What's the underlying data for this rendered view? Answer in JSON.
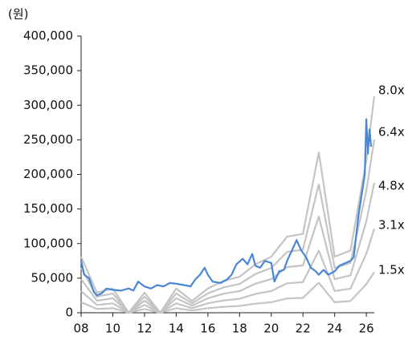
{
  "chart_data": {
    "type": "line",
    "y_label": "(원)",
    "xlim": [
      2008,
      2026.5
    ],
    "ylim": [
      0,
      400000
    ],
    "xticks": [
      {
        "value": 2008,
        "label": "08"
      },
      {
        "value": 2010,
        "label": "10"
      },
      {
        "value": 2012,
        "label": "12"
      },
      {
        "value": 2014,
        "label": "14"
      },
      {
        "value": 2016,
        "label": "16"
      },
      {
        "value": 2018,
        "label": "18"
      },
      {
        "value": 2020,
        "label": "20"
      },
      {
        "value": 2022,
        "label": "22"
      },
      {
        "value": 2024,
        "label": "24"
      },
      {
        "value": 2026,
        "label": "26"
      }
    ],
    "yticks": [
      0,
      {
        "value": 50000,
        "label": "50,000"
      },
      {
        "value": 100000,
        "label": "100,000"
      },
      {
        "value": 150000,
        "label": "150,000"
      },
      {
        "value": 200000,
        "label": "200,000"
      },
      {
        "value": 250000,
        "label": "250,000"
      },
      {
        "value": 300000,
        "label": "300,000"
      },
      {
        "value": 350000,
        "label": "350,000"
      },
      {
        "value": 400000,
        "label": "400,000"
      }
    ],
    "x": [
      2008,
      2009,
      2010,
      2011,
      2012,
      2013,
      2014,
      2015,
      2016,
      2017,
      2018,
      2019,
      2020,
      2021,
      2022,
      2023,
      2024,
      2025,
      2026,
      2026.5
    ],
    "series": [
      {
        "name": "8.0x",
        "color": "#c4c4c4",
        "values": [
          81000,
          29000,
          35000,
          0,
          29000,
          0,
          35000,
          17000,
          35000,
          46000,
          52000,
          70000,
          81000,
          110000,
          114000,
          232000,
          81000,
          90000,
          220000,
          313000
        ]
      },
      {
        "name": "6.4x",
        "color": "#c4c4c4",
        "values": [
          64800,
          23200,
          28000,
          0,
          23200,
          0,
          28000,
          13600,
          28000,
          36800,
          41600,
          56000,
          64800,
          88000,
          91200,
          185600,
          64800,
          72000,
          176000,
          250400
        ]
      },
      {
        "name": "4.8x",
        "color": "#c4c4c4",
        "values": [
          48600,
          17400,
          21000,
          0,
          17400,
          0,
          21000,
          10200,
          21000,
          27600,
          31200,
          42000,
          48600,
          66000,
          68400,
          139200,
          48600,
          54000,
          132000,
          187800
        ]
      },
      {
        "name": "3.1x",
        "color": "#c4c4c4",
        "values": [
          31400,
          11200,
          13600,
          0,
          11200,
          0,
          13600,
          6600,
          13600,
          17800,
          20200,
          27100,
          31400,
          42600,
          44200,
          89900,
          31400,
          34900,
          85300,
          121300
        ]
      },
      {
        "name": "1.5x",
        "color": "#c4c4c4",
        "values": [
          15200,
          5400,
          6600,
          0,
          5400,
          0,
          6600,
          3200,
          6600,
          8600,
          9800,
          13100,
          15200,
          20600,
          21400,
          43500,
          15200,
          16900,
          41300,
          58700
        ]
      }
    ],
    "price": {
      "color": "#4a86d6",
      "x": [
        2008.0,
        2008.2,
        2008.5,
        2008.8,
        2009.0,
        2009.3,
        2009.6,
        2010.0,
        2010.5,
        2011.0,
        2011.3,
        2011.6,
        2012.0,
        2012.4,
        2012.8,
        2013.2,
        2013.6,
        2014.0,
        2014.5,
        2014.9,
        2015.2,
        2015.5,
        2015.8,
        2016.0,
        2016.3,
        2016.8,
        2017.2,
        2017.5,
        2017.8,
        2018.2,
        2018.5,
        2018.8,
        2019.0,
        2019.3,
        2019.6,
        2020.0,
        2020.2,
        2020.5,
        2020.8,
        2021.0,
        2021.3,
        2021.6,
        2021.9,
        2022.2,
        2022.5,
        2022.8,
        2023.0,
        2023.3,
        2023.6,
        2024.0,
        2024.3,
        2024.7,
        2025.0,
        2025.2,
        2025.5,
        2025.7,
        2025.9,
        2026.0,
        2026.1,
        2026.2,
        2026.3
      ],
      "values": [
        75000,
        55000,
        50000,
        30000,
        25000,
        28000,
        35000,
        33000,
        32000,
        35000,
        32000,
        45000,
        38000,
        35000,
        40000,
        38000,
        43000,
        42000,
        40000,
        38000,
        48000,
        55000,
        65000,
        55000,
        45000,
        43000,
        48000,
        55000,
        70000,
        78000,
        70000,
        85000,
        68000,
        65000,
        75000,
        72000,
        45000,
        60000,
        62000,
        75000,
        90000,
        105000,
        90000,
        80000,
        65000,
        60000,
        55000,
        62000,
        55000,
        60000,
        68000,
        72000,
        75000,
        80000,
        140000,
        170000,
        200000,
        280000,
        230000,
        265000,
        240000
      ]
    }
  }
}
